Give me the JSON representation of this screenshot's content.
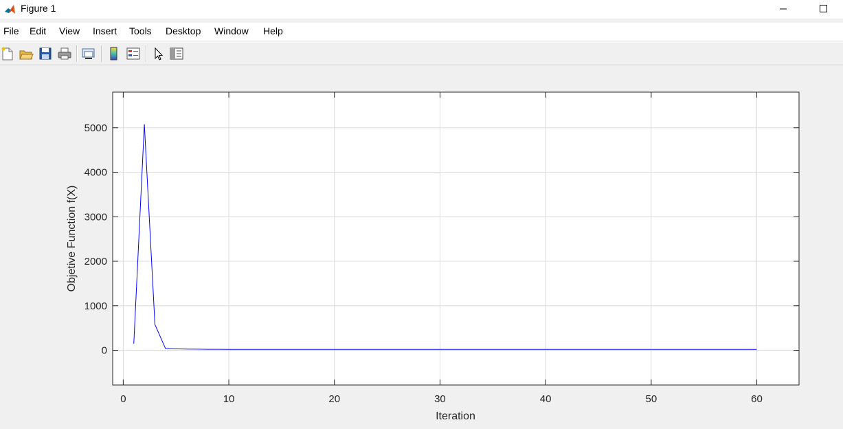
{
  "window": {
    "title": "Figure 1"
  },
  "menu": [
    "File",
    "Edit",
    "View",
    "Insert",
    "Tools",
    "Desktop",
    "Window",
    "Help"
  ],
  "toolbar": {
    "icons": [
      "new-figure-icon",
      "open-file-icon",
      "save-icon",
      "print-icon",
      "link-plot-icon",
      "colorbar-icon",
      "legend-icon",
      "edit-plot-arrow-icon",
      "property-inspector-icon"
    ]
  },
  "colors": {
    "line": "#0000ff",
    "axes_bg": "#ffffff",
    "figure_bg": "#f0f0f0",
    "grid": "#dcdcdc"
  },
  "chart_data": {
    "type": "line",
    "title": "",
    "xlabel": "Iteration",
    "ylabel": "Objetive Function f(X)",
    "xlim": [
      -1,
      64
    ],
    "ylim": [
      -780,
      5800
    ],
    "xticks": [
      0,
      10,
      20,
      30,
      40,
      50,
      60
    ],
    "yticks": [
      0,
      1000,
      2000,
      3000,
      4000,
      5000
    ],
    "grid": true,
    "series": [
      {
        "x": [
          1,
          2,
          3,
          4,
          5,
          6,
          7,
          8,
          9,
          10,
          11,
          12,
          13,
          14,
          15,
          16,
          17,
          18,
          19,
          20,
          21,
          22,
          23,
          24,
          25,
          26,
          27,
          28,
          29,
          30,
          31,
          32,
          33,
          34,
          35,
          36,
          37,
          38,
          39,
          40,
          41,
          42,
          43,
          44,
          45,
          46,
          47,
          48,
          49,
          50,
          51,
          52,
          53,
          54,
          55,
          56,
          57,
          58,
          59,
          60
        ],
        "y": [
          150,
          5080,
          580,
          40,
          32,
          28,
          25,
          22,
          21,
          20,
          20,
          20,
          20,
          20,
          20,
          20,
          20,
          20,
          20,
          20,
          20,
          20,
          20,
          20,
          20,
          20,
          20,
          20,
          20,
          20,
          20,
          20,
          20,
          20,
          20,
          20,
          20,
          20,
          20,
          20,
          20,
          20,
          20,
          20,
          20,
          20,
          20,
          20,
          20,
          20,
          20,
          20,
          20,
          20,
          20,
          20,
          20,
          20,
          20,
          20
        ]
      }
    ]
  }
}
